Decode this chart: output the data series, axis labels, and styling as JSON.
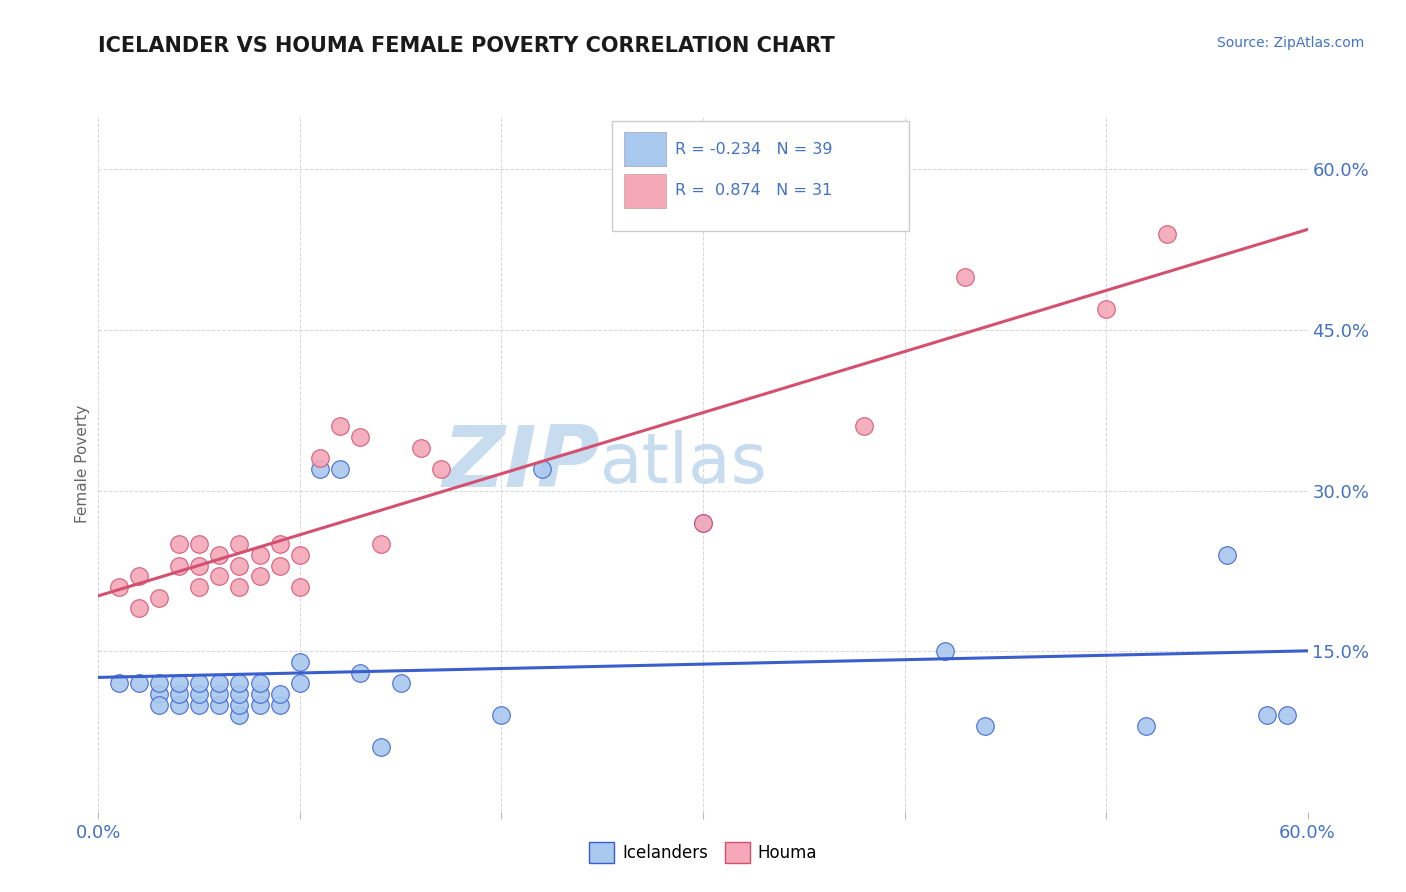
{
  "title": "ICELANDER VS HOUMA FEMALE POVERTY CORRELATION CHART",
  "source_text": "Source: ZipAtlas.com",
  "ylabel": "Female Poverty",
  "xlim": [
    0.0,
    0.6
  ],
  "ylim": [
    0.0,
    0.65
  ],
  "yticks": [
    0.15,
    0.3,
    0.45,
    0.6
  ],
  "ytick_labels": [
    "15.0%",
    "30.0%",
    "45.0%",
    "60.0%"
  ],
  "xticks": [
    0.0,
    0.1,
    0.2,
    0.3,
    0.4,
    0.5,
    0.6
  ],
  "xtick_labels": [
    "0.0%",
    "",
    "",
    "",
    "",
    "",
    "60.0%"
  ],
  "r_icelander": -0.234,
  "n_icelander": 39,
  "r_houma": 0.874,
  "n_houma": 31,
  "color_icelander": "#A8C8EE",
  "color_houma": "#F4A8B8",
  "line_color_icelander": "#3A5FCD",
  "line_color_houma": "#D45070",
  "watermark_zip": "ZIP",
  "watermark_atlas": "atlas",
  "watermark_color": "#C8DCF0",
  "icelander_x": [
    0.01,
    0.02,
    0.03,
    0.03,
    0.03,
    0.04,
    0.04,
    0.04,
    0.05,
    0.05,
    0.05,
    0.06,
    0.06,
    0.06,
    0.07,
    0.07,
    0.07,
    0.07,
    0.08,
    0.08,
    0.08,
    0.09,
    0.09,
    0.1,
    0.1,
    0.11,
    0.12,
    0.13,
    0.14,
    0.15,
    0.2,
    0.22,
    0.3,
    0.42,
    0.44,
    0.52,
    0.56,
    0.58,
    0.59
  ],
  "icelander_y": [
    0.12,
    0.12,
    0.11,
    0.12,
    0.1,
    0.1,
    0.11,
    0.12,
    0.1,
    0.11,
    0.12,
    0.1,
    0.11,
    0.12,
    0.09,
    0.1,
    0.11,
    0.12,
    0.1,
    0.11,
    0.12,
    0.1,
    0.11,
    0.12,
    0.14,
    0.32,
    0.32,
    0.13,
    0.06,
    0.12,
    0.09,
    0.32,
    0.27,
    0.15,
    0.08,
    0.08,
    0.24,
    0.09,
    0.09
  ],
  "houma_x": [
    0.01,
    0.02,
    0.02,
    0.03,
    0.04,
    0.04,
    0.05,
    0.05,
    0.05,
    0.06,
    0.06,
    0.07,
    0.07,
    0.07,
    0.08,
    0.08,
    0.09,
    0.09,
    0.1,
    0.1,
    0.11,
    0.12,
    0.13,
    0.14,
    0.16,
    0.17,
    0.3,
    0.38,
    0.43,
    0.5,
    0.53
  ],
  "houma_y": [
    0.21,
    0.19,
    0.22,
    0.2,
    0.23,
    0.25,
    0.21,
    0.23,
    0.25,
    0.22,
    0.24,
    0.21,
    0.23,
    0.25,
    0.22,
    0.24,
    0.23,
    0.25,
    0.21,
    0.24,
    0.33,
    0.36,
    0.35,
    0.25,
    0.34,
    0.32,
    0.27,
    0.36,
    0.5,
    0.47,
    0.54
  ]
}
